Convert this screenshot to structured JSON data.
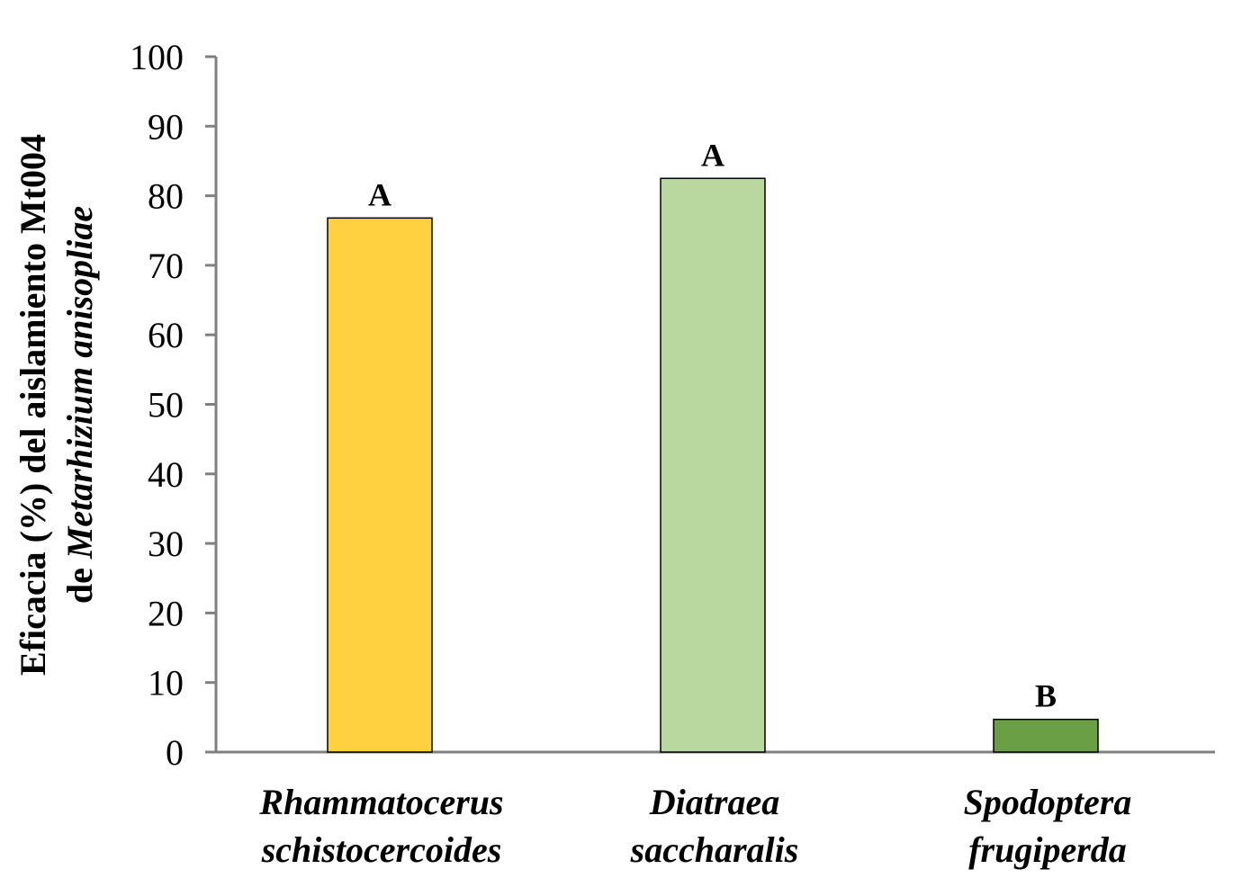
{
  "chart_data": {
    "type": "bar",
    "title": "",
    "ylabel_line1": "Eficacia  (%) del aislamiento Mt004",
    "ylabel_line2_prefix": "de ",
    "ylabel_line2_italic": "Metarhizium anisopliae",
    "xlabel": "",
    "ylim": [
      0,
      100
    ],
    "yticks": [
      0,
      10,
      20,
      30,
      40,
      50,
      60,
      70,
      80,
      90,
      100
    ],
    "grid": false,
    "legend": "none",
    "categories": [
      {
        "line1": "Rhammatocerus",
        "line2": "schistocercoides"
      },
      {
        "line1": "Diatraea",
        "line2": "saccharalis"
      },
      {
        "line1": "Spodoptera",
        "line2": "frugiperda"
      }
    ],
    "values": [
      76.8,
      82.5,
      4.7
    ],
    "significance_labels": [
      "A",
      "A",
      "B"
    ],
    "colors": [
      "#FFD141",
      "#B8D8A0",
      "#6A9F46"
    ],
    "axis_color": "#808080"
  }
}
